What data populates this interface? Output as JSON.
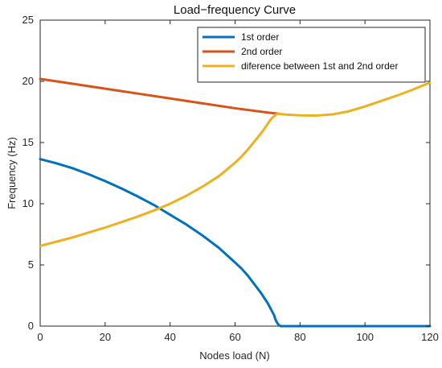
{
  "chart_data": {
    "type": "line",
    "title": "Load−frequency Curve",
    "xlabel": "Nodes load (N)",
    "ylabel": "Frequency (Hz)",
    "xlim": [
      0,
      120
    ],
    "ylim": [
      0,
      25
    ],
    "xticks": [
      0,
      20,
      40,
      60,
      80,
      100,
      120
    ],
    "yticks": [
      0,
      5,
      10,
      15,
      20,
      25
    ],
    "xtick_labels": [
      "0",
      "20",
      "40",
      "60",
      "80",
      "100",
      "120"
    ],
    "ytick_labels": [
      "0",
      "5",
      "10",
      "15",
      "20",
      "25"
    ],
    "grid": false,
    "legend_position": "top-right",
    "series": [
      {
        "name": "1st order",
        "color": "#0072BD",
        "x": [
          0,
          5,
          10,
          15,
          20,
          25,
          30,
          35,
          40,
          45,
          50,
          55,
          60,
          62,
          64,
          66,
          68,
          70,
          71,
          72,
          72.5,
          73,
          73.5,
          74,
          75,
          80,
          90,
          100,
          110,
          120
        ],
        "y": [
          13.65,
          13.3,
          12.9,
          12.4,
          11.85,
          11.25,
          10.6,
          9.9,
          9.1,
          8.3,
          7.4,
          6.4,
          5.2,
          4.7,
          4.1,
          3.4,
          2.7,
          1.9,
          1.4,
          0.9,
          0.5,
          0.25,
          0.08,
          0.0,
          0.0,
          0.0,
          0.0,
          0.0,
          0.0,
          0.0
        ]
      },
      {
        "name": "2nd order",
        "color": "#D95319",
        "x": [
          0,
          10,
          20,
          30,
          40,
          50,
          60,
          70,
          73.5
        ],
        "y": [
          20.2,
          19.8,
          19.4,
          19.0,
          18.6,
          18.2,
          17.8,
          17.45,
          17.35
        ]
      },
      {
        "name": "diference between 1st and 2nd order",
        "color": "#EDB120",
        "x": [
          0,
          5,
          10,
          15,
          20,
          25,
          30,
          35,
          40,
          45,
          50,
          55,
          60,
          62,
          64,
          66,
          68,
          70,
          71,
          72,
          72.5,
          73,
          73.5,
          74,
          76,
          80,
          85,
          90,
          95,
          100,
          105,
          110,
          115,
          120
        ],
        "y": [
          6.55,
          6.9,
          7.25,
          7.65,
          8.05,
          8.5,
          8.95,
          9.45,
          10.0,
          10.65,
          11.4,
          12.25,
          13.35,
          13.85,
          14.45,
          15.1,
          15.75,
          16.5,
          16.9,
          17.15,
          17.28,
          17.33,
          17.35,
          17.33,
          17.28,
          17.22,
          17.2,
          17.3,
          17.55,
          17.95,
          18.4,
          18.85,
          19.35,
          19.9
        ]
      }
    ]
  }
}
